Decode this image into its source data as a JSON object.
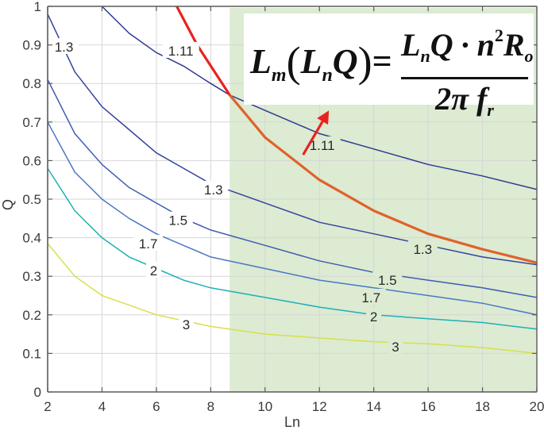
{
  "chart_data": {
    "type": "line",
    "subtype": "contour",
    "title": "",
    "xlabel": "Ln",
    "ylabel": "Q",
    "xlim": [
      2,
      20
    ],
    "ylim": [
      0,
      1
    ],
    "xticks": [
      2,
      4,
      6,
      8,
      10,
      12,
      14,
      16,
      18,
      20
    ],
    "yticks": [
      0,
      0.1,
      0.2,
      0.3,
      0.4,
      0.5,
      0.6,
      0.7,
      0.8,
      0.9,
      1
    ],
    "xtick_labels": [
      "2",
      "4",
      "6",
      "8",
      "10",
      "12",
      "14",
      "16",
      "18",
      "20"
    ],
    "ytick_labels": [
      "0",
      "0.1",
      "0.2",
      "0.3",
      "0.4",
      "0.5",
      "0.6",
      "0.7",
      "0.8",
      "0.9",
      "1"
    ],
    "grid": true,
    "shaded_region": {
      "x_from": 8.7,
      "x_to": 20,
      "y_from": 0,
      "y_to": 1,
      "color": "#dcebd2"
    },
    "series": [
      {
        "name": "1.11",
        "color": "#2e3a8f",
        "x": [
          4,
          5,
          6,
          7,
          8,
          8.7,
          10,
          12,
          14,
          16,
          18,
          20
        ],
        "y": [
          1.0,
          0.93,
          0.88,
          0.845,
          0.8,
          0.77,
          0.73,
          0.67,
          0.63,
          0.59,
          0.56,
          0.525
        ],
        "labels": [
          {
            "x": 6.9,
            "y": 0.885
          },
          {
            "x": 12.1,
            "y": 0.64
          }
        ]
      },
      {
        "name": "1.3",
        "color": "#34449c",
        "x": [
          2,
          3,
          4,
          5,
          6,
          7,
          8,
          10,
          12,
          14,
          16,
          18,
          20
        ],
        "y": [
          0.98,
          0.83,
          0.74,
          0.68,
          0.62,
          0.58,
          0.54,
          0.49,
          0.44,
          0.41,
          0.38,
          0.35,
          0.33
        ],
        "labels": [
          {
            "x": 2.6,
            "y": 0.895
          },
          {
            "x": 8.1,
            "y": 0.525
          },
          {
            "x": 15.8,
            "y": 0.37
          }
        ]
      },
      {
        "name": "1.5",
        "color": "#3f5cb0",
        "x": [
          2,
          3,
          4,
          5,
          6,
          7,
          8,
          10,
          12,
          14,
          16,
          18,
          20
        ],
        "y": [
          0.81,
          0.67,
          0.59,
          0.53,
          0.49,
          0.45,
          0.42,
          0.38,
          0.34,
          0.31,
          0.29,
          0.27,
          0.245
        ],
        "labels": [
          {
            "x": 6.8,
            "y": 0.445
          },
          {
            "x": 14.5,
            "y": 0.29
          }
        ]
      },
      {
        "name": "1.7",
        "color": "#4a78c4",
        "x": [
          2,
          3,
          4,
          5,
          6,
          7,
          8,
          10,
          12,
          14,
          16,
          18,
          20
        ],
        "y": [
          0.7,
          0.57,
          0.5,
          0.45,
          0.41,
          0.38,
          0.35,
          0.32,
          0.29,
          0.27,
          0.25,
          0.23,
          0.2
        ],
        "labels": [
          {
            "x": 5.7,
            "y": 0.385
          },
          {
            "x": 13.9,
            "y": 0.245
          }
        ]
      },
      {
        "name": "2",
        "color": "#1eb0b8",
        "x": [
          2,
          3,
          4,
          5,
          6,
          7,
          8,
          10,
          12,
          14,
          16,
          18,
          20
        ],
        "y": [
          0.58,
          0.47,
          0.4,
          0.35,
          0.32,
          0.29,
          0.27,
          0.245,
          0.22,
          0.2,
          0.19,
          0.18,
          0.163
        ],
        "labels": [
          {
            "x": 5.9,
            "y": 0.315
          },
          {
            "x": 14.0,
            "y": 0.195
          }
        ]
      },
      {
        "name": "3",
        "color": "#d9df4a",
        "x": [
          2,
          3,
          4,
          5,
          6,
          7,
          8,
          10,
          12,
          14,
          16,
          18,
          20
        ],
        "y": [
          0.385,
          0.3,
          0.25,
          0.225,
          0.2,
          0.185,
          0.17,
          0.15,
          0.14,
          0.13,
          0.125,
          0.115,
          0.1
        ],
        "labels": [
          {
            "x": 7.1,
            "y": 0.175
          },
          {
            "x": 14.8,
            "y": 0.117
          }
        ]
      },
      {
        "name": "Lm(LnQ) boundary",
        "color": "#e8231f",
        "color_in_region": "#e0622a",
        "x": [
          6.75,
          7.5,
          8.7,
          10,
          12,
          14,
          16,
          18,
          20
        ],
        "y": [
          1.0,
          0.9,
          0.77,
          0.66,
          0.55,
          0.47,
          0.41,
          0.37,
          0.335
        ],
        "labels": []
      }
    ],
    "annotations": [
      {
        "type": "arrow",
        "from": {
          "x": 11.4,
          "y": 0.615
        },
        "to": {
          "x": 12.35,
          "y": 0.73
        },
        "color": "#e8231f"
      },
      {
        "type": "formula",
        "text": "L_m(L_nQ) = L_nQ·n²R_o / (2π f_r)"
      }
    ]
  },
  "formula": {
    "lhs_main": "L",
    "lhs_sub": "m",
    "arg_main": "L",
    "arg_sub": "n",
    "arg_q": "Q",
    "equals": "=",
    "num_l": "L",
    "num_l_sub": "n",
    "num_rest": "Q · n",
    "num_sup": "2",
    "num_r": "R",
    "num_r_sub": "o",
    "den_main": "2π f",
    "den_sub": "r"
  },
  "axes": {
    "xlabel": "Ln",
    "ylabel": "Q"
  }
}
